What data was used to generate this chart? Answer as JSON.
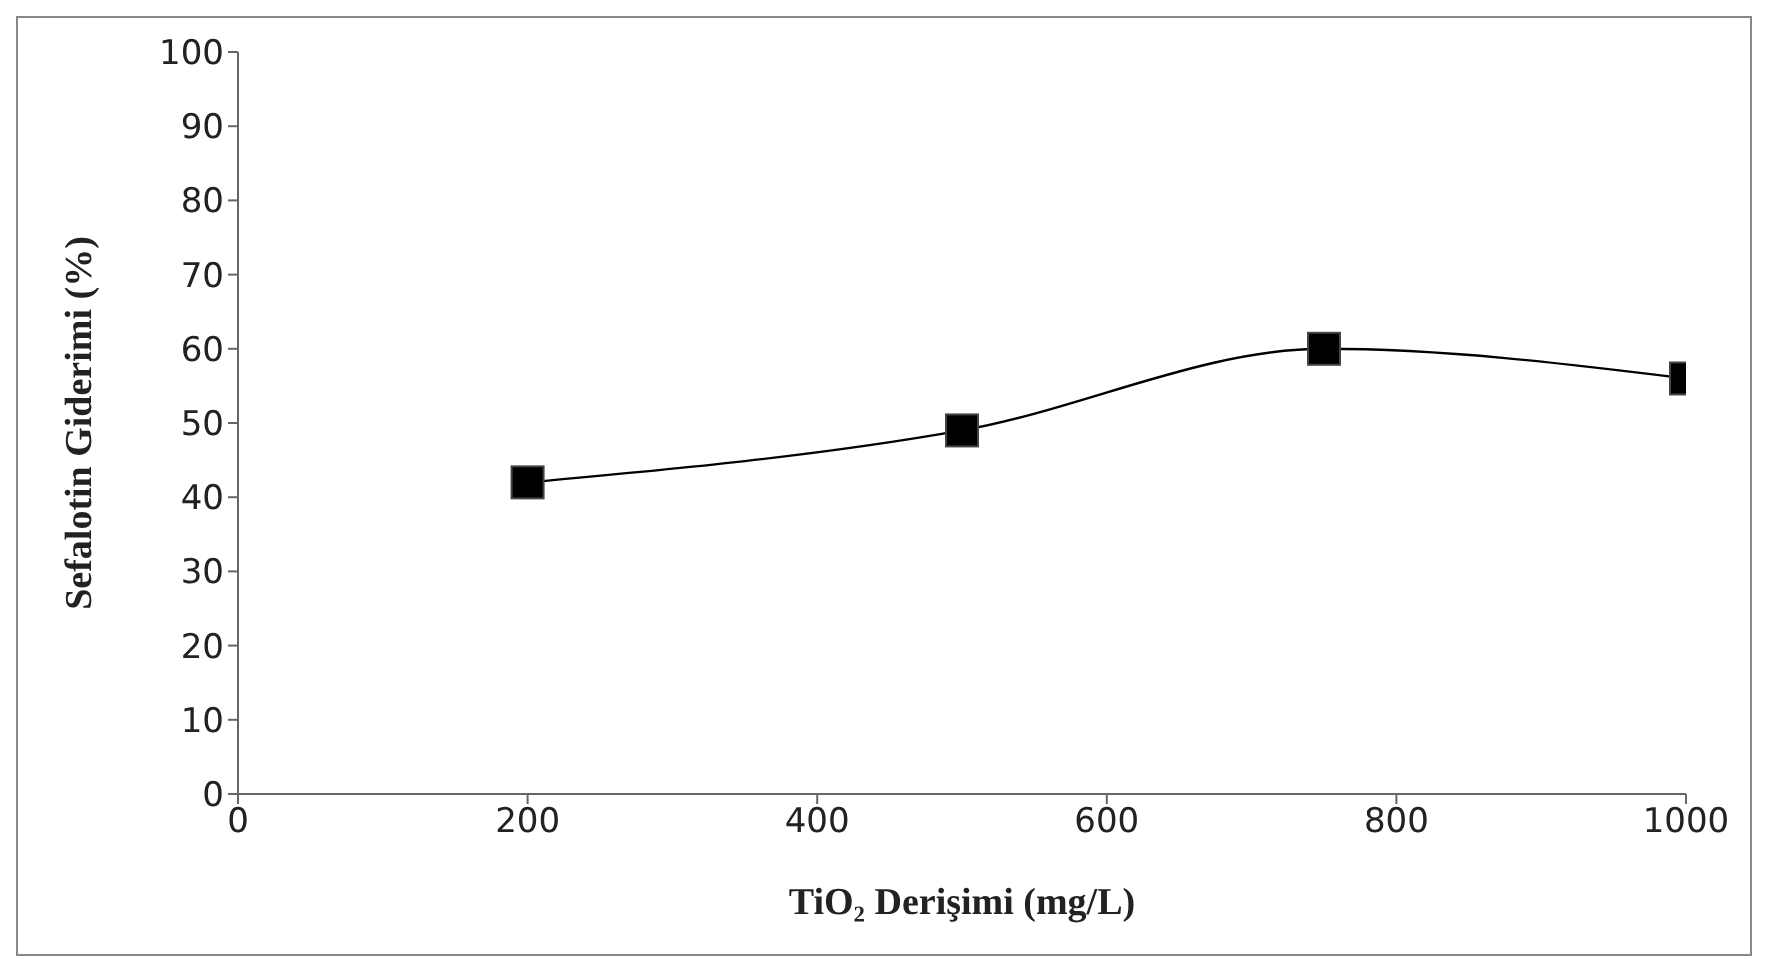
{
  "chart_data": {
    "type": "line",
    "xlabel": "TiO₂ Derişimi (mg/L)",
    "ylabel": "Sefalotin Giderimi (%)",
    "x": [
      200,
      500,
      750,
      1000
    ],
    "series": [
      {
        "color": "#000000",
        "values": [
          42,
          49,
          60,
          56
        ]
      }
    ],
    "xlim": [
      0,
      1000
    ],
    "xticks": [
      0,
      200,
      400,
      600,
      800,
      1000
    ],
    "ylim": [
      0,
      100
    ],
    "yticks": [
      0,
      10,
      20,
      30,
      40,
      50,
      60,
      70,
      80,
      90,
      100
    ],
    "grid": false,
    "legend": false,
    "marker": "square",
    "line_style": "solid"
  }
}
